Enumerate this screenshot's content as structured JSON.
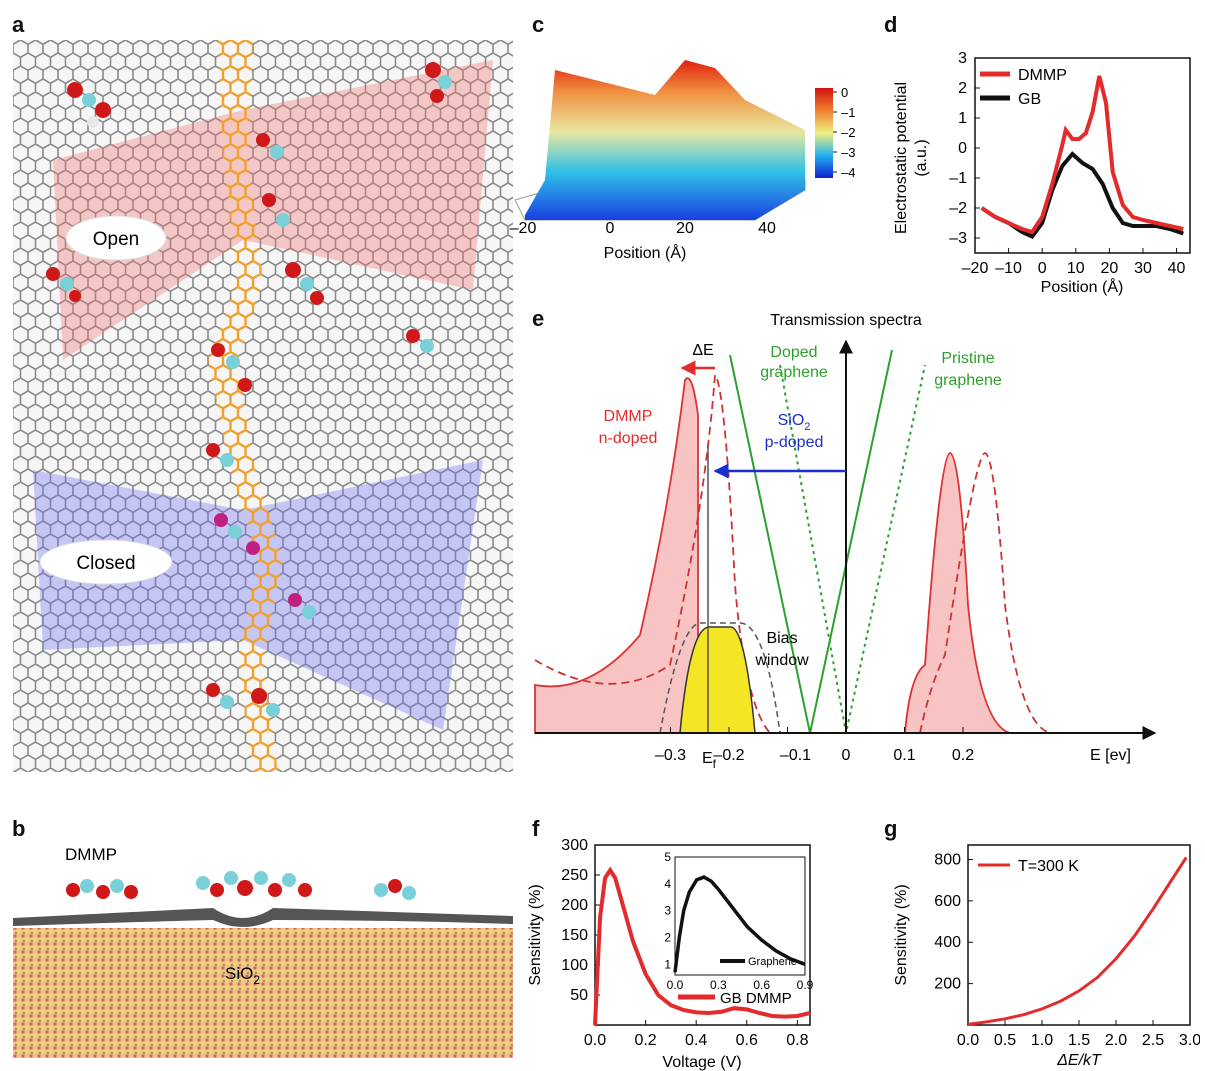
{
  "panels": {
    "a": "a",
    "b": "b",
    "c": "c",
    "d": "d",
    "e": "e",
    "f": "f",
    "g": "g"
  },
  "panel_a": {
    "open_label": "Open",
    "closed_label": "Closed"
  },
  "panel_b": {
    "dmmp_label": "DMMP",
    "substrate_label": "SiO",
    "substrate_sub": "2"
  },
  "colors": {
    "red": "#e32b2b",
    "black": "#111111",
    "green": "#2ca02c",
    "blue": "#1a2fd0",
    "yellow": "#f5e625",
    "pink": "#f7c3c3",
    "orange": "#f0a030"
  },
  "chart_data": [
    {
      "id": "c",
      "type": "heatmap",
      "xlabel": "Position (Å)",
      "xticks": [
        "–20",
        "0",
        "20",
        "40"
      ],
      "colorbar_ticks": [
        "0",
        "–1",
        "–2",
        "–3",
        "–4"
      ],
      "colorbar_range": [
        -4.3,
        0.5
      ]
    },
    {
      "id": "d",
      "type": "line",
      "xlabel": "Position (Å)",
      "ylabel": "Electrostatic potential (a.u.)",
      "ylabel_line1": "Electrostatic potential",
      "ylabel_line2": "(a.u.)",
      "xlim": [
        -20,
        44
      ],
      "ylim": [
        -3.5,
        3
      ],
      "xticks": [
        "–20",
        "–10",
        "0",
        "10",
        "20",
        "30",
        "40"
      ],
      "yticks": [
        "3",
        "2",
        "1",
        "0",
        "–1",
        "–2",
        "–3"
      ],
      "series": [
        {
          "name": "DMMP",
          "color": "#e32b2b",
          "x": [
            -18,
            -14,
            -10,
            -6,
            -3,
            0,
            3,
            6,
            7,
            9,
            11,
            13,
            15,
            17,
            19,
            21,
            24,
            27,
            30,
            34,
            38,
            42
          ],
          "y": [
            -2.0,
            -2.3,
            -2.5,
            -2.7,
            -2.8,
            -2.3,
            -1.2,
            0.1,
            0.6,
            0.3,
            0.3,
            0.5,
            1.2,
            2.4,
            1.5,
            -0.8,
            -1.9,
            -2.3,
            -2.4,
            -2.5,
            -2.6,
            -2.7
          ]
        },
        {
          "name": "GB",
          "color": "#111111",
          "x": [
            -18,
            -14,
            -10,
            -6,
            -3,
            0,
            3,
            6,
            9,
            12,
            15,
            18,
            21,
            24,
            27,
            30,
            34,
            38,
            42
          ],
          "y": [
            -2.0,
            -2.3,
            -2.5,
            -2.8,
            -2.95,
            -2.5,
            -1.4,
            -0.6,
            -0.2,
            -0.5,
            -0.7,
            -1.2,
            -2.0,
            -2.5,
            -2.6,
            -2.6,
            -2.6,
            -2.7,
            -2.85
          ]
        }
      ]
    },
    {
      "id": "e",
      "type": "line",
      "title": "Transmission spectra",
      "xlabel": "E [ev]",
      "xticks": [
        "–0.3",
        "–0.2",
        "–0.1",
        "0",
        "0.1",
        "0.2"
      ],
      "ef_label": "E",
      "ef_sub": "f",
      "annotations": {
        "delta_e": "ΔE",
        "doped_line1": "Doped",
        "doped_line2": "graphene",
        "pristine_line1": "Pristine",
        "pristine_line2": "graphene",
        "sio2_main": "SiO",
        "sio2_sub": "2",
        "sio2_line2": "p-doped",
        "dmmp_line1": "DMMP",
        "dmmp_line2": "n-doped",
        "bias_line1": "Bias",
        "bias_line2": "window"
      }
    },
    {
      "id": "f",
      "type": "line",
      "xlabel": "Voltage (V)",
      "ylabel": "Sensitivity (%)",
      "xlim": [
        0,
        0.85
      ],
      "ylim": [
        0,
        300
      ],
      "xticks": [
        "0.0",
        "0.2",
        "0.4",
        "0.6",
        "0.8"
      ],
      "yticks": [
        "300",
        "250",
        "200",
        "150",
        "100",
        "50"
      ],
      "series": [
        {
          "name": "GB DMMP",
          "color": "#e32b2b",
          "x": [
            0,
            0.02,
            0.04,
            0.06,
            0.08,
            0.1,
            0.15,
            0.2,
            0.25,
            0.3,
            0.35,
            0.4,
            0.45,
            0.5,
            0.55,
            0.6,
            0.65,
            0.7,
            0.75,
            0.8,
            0.85
          ],
          "y": [
            0,
            180,
            245,
            258,
            245,
            215,
            140,
            85,
            50,
            33,
            25,
            21,
            20,
            22,
            28,
            26,
            20,
            15,
            14,
            15,
            20
          ]
        }
      ],
      "inset": {
        "xticks": [
          "0.0",
          "0.3",
          "0.6",
          "0.9"
        ],
        "yticks": [
          "5",
          "4",
          "3",
          "2",
          "1"
        ],
        "xlim": [
          0,
          0.9
        ],
        "ylim": [
          0.6,
          5
        ],
        "series": [
          {
            "name": "Graphene",
            "color": "#111111",
            "x": [
              0,
              0.03,
              0.06,
              0.1,
              0.15,
              0.2,
              0.25,
              0.3,
              0.4,
              0.5,
              0.6,
              0.7,
              0.8,
              0.9
            ],
            "y": [
              0.7,
              2.0,
              3.0,
              3.7,
              4.15,
              4.25,
              4.1,
              3.8,
              3.1,
              2.4,
              1.9,
              1.5,
              1.2,
              1.0
            ]
          }
        ]
      }
    },
    {
      "id": "g",
      "type": "line",
      "xlabel": "ΔE/kT",
      "ylabel": "Sensitivity (%)",
      "xlim": [
        0,
        3
      ],
      "ylim": [
        0,
        870
      ],
      "xticks": [
        "0.0",
        "0.5",
        "1.0",
        "1.5",
        "2.0",
        "2.5",
        "3.0"
      ],
      "yticks": [
        "800",
        "600",
        "400",
        "200"
      ],
      "series": [
        {
          "name": "T=300 K",
          "color": "#e32b2b",
          "x": [
            0,
            0.25,
            0.5,
            0.75,
            1.0,
            1.25,
            1.5,
            1.75,
            2.0,
            2.25,
            2.5,
            2.75,
            2.95
          ],
          "y": [
            3,
            15,
            30,
            50,
            78,
            115,
            165,
            230,
            320,
            430,
            560,
            700,
            810
          ]
        }
      ]
    }
  ]
}
